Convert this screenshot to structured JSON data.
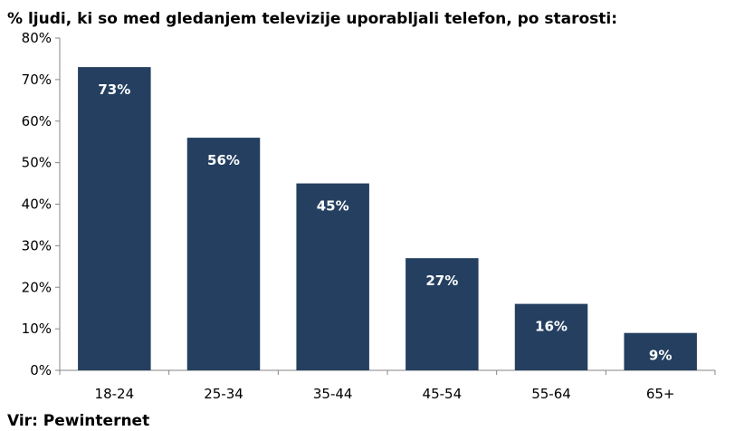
{
  "chart_data": {
    "type": "bar",
    "title": "% ljudi, ki so med gledanjem televizije uporabljali telefon, po starosti:",
    "xlabel": "",
    "ylabel": "",
    "categories": [
      "18-24",
      "25-34",
      "35-44",
      "45-54",
      "55-64",
      "65+"
    ],
    "values": [
      73,
      56,
      45,
      27,
      16,
      9
    ],
    "data_labels": [
      "73%",
      "56%",
      "45%",
      "27%",
      "16%",
      "9%"
    ],
    "ylim": [
      0,
      80
    ],
    "yticks": [
      0,
      10,
      20,
      30,
      40,
      50,
      60,
      70,
      80
    ],
    "ytick_labels": [
      "0%",
      "10%",
      "20%",
      "30%",
      "40%",
      "50%",
      "60%",
      "70%",
      "80%"
    ],
    "grid": false,
    "legend": "none",
    "bar_color": "#243f60",
    "source": "Vir: Pewinternet"
  }
}
